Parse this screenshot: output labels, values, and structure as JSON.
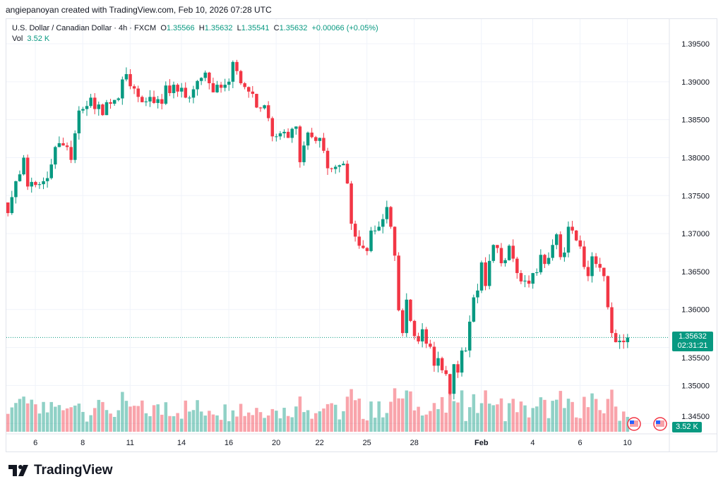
{
  "credit": "angiepanoyan created with TradingView.com, Feb 10, 2026 07:28 UTC",
  "legend": {
    "symbol": "U.S. Dollar / Canadian Dollar · 4h · FXCM",
    "o_label": "O",
    "o": "1.35566",
    "h_label": "H",
    "h": "1.35632",
    "l_label": "L",
    "l": "1.35541",
    "c_label": "C",
    "c": "1.35632",
    "change": "+0.00066 (+0.05%)",
    "vol_label": "Vol",
    "vol": "3.52 K"
  },
  "price_label": {
    "price": "1.35632",
    "countdown": "02:31:21"
  },
  "volume_label": "3.52 K",
  "logo_text": "TradingView",
  "colors": {
    "up": "#089981",
    "down": "#f23645",
    "grid": "#f0f3fa"
  },
  "chart_data": {
    "type": "candlestick",
    "title": "U.S. Dollar / Canadian Dollar · 4h · FXCM",
    "y_ticks": [
      "1.39500",
      "1.39000",
      "1.38500",
      "1.38000",
      "1.37500",
      "1.37000",
      "1.36500",
      "1.36000",
      "1.35500",
      "1.35000",
      "1.34500"
    ],
    "x_ticks": [
      {
        "label": "6",
        "index": 7
      },
      {
        "label": "8",
        "index": 19
      },
      {
        "label": "11",
        "index": 31
      },
      {
        "label": "14",
        "index": 44
      },
      {
        "label": "16",
        "index": 56
      },
      {
        "label": "20",
        "index": 68
      },
      {
        "label": "22",
        "index": 79
      },
      {
        "label": "25",
        "index": 91
      },
      {
        "label": "28",
        "index": 103
      },
      {
        "label": "Feb",
        "index": 120
      },
      {
        "label": "4",
        "index": 133
      },
      {
        "label": "6",
        "index": 145
      },
      {
        "label": "10",
        "index": 157
      }
    ],
    "ylim": [
      1.3435,
      1.3975
    ],
    "first_open": 1.3741,
    "closes": [
      1.3727,
      1.3748,
      1.3769,
      1.3778,
      1.38,
      1.3762,
      1.3768,
      1.3764,
      1.3765,
      1.3769,
      1.3773,
      1.3791,
      1.3814,
      1.3819,
      1.3816,
      1.3814,
      1.3797,
      1.3832,
      1.3862,
      1.3864,
      1.3868,
      1.3879,
      1.3864,
      1.387,
      1.3856,
      1.3873,
      1.3871,
      1.3876,
      1.3878,
      1.3903,
      1.391,
      1.3894,
      1.3891,
      1.388,
      1.3873,
      1.3874,
      1.388,
      1.3872,
      1.3877,
      1.3871,
      1.3895,
      1.3885,
      1.3896,
      1.3887,
      1.3892,
      1.3879,
      1.3879,
      1.389,
      1.3901,
      1.3905,
      1.3912,
      1.3898,
      1.3886,
      1.3896,
      1.3892,
      1.3896,
      1.39,
      1.3926,
      1.3914,
      1.3898,
      1.3893,
      1.3887,
      1.3884,
      1.3866,
      1.3865,
      1.3869,
      1.3852,
      1.3828,
      1.3828,
      1.3832,
      1.3834,
      1.3826,
      1.3838,
      1.3841,
      1.3794,
      1.3816,
      1.3833,
      1.3827,
      1.3822,
      1.3826,
      1.3809,
      1.3786,
      1.3785,
      1.3788,
      1.379,
      1.3792,
      1.3766,
      1.3713,
      1.3696,
      1.3684,
      1.3681,
      1.3677,
      1.3704,
      1.3704,
      1.3709,
      1.3719,
      1.3735,
      1.3709,
      1.3671,
      1.3599,
      1.3569,
      1.3613,
      1.3585,
      1.3565,
      1.3558,
      1.3574,
      1.3555,
      1.3551,
      1.3526,
      1.3536,
      1.352,
      1.3515,
      1.3489,
      1.3528,
      1.3517,
      1.3546,
      1.3546,
      1.3584,
      1.3616,
      1.3625,
      1.3662,
      1.3631,
      1.3664,
      1.3685,
      1.3681,
      1.3661,
      1.3665,
      1.3684,
      1.3667,
      1.3648,
      1.3637,
      1.3638,
      1.3634,
      1.3648,
      1.3649,
      1.3672,
      1.366,
      1.3668,
      1.3685,
      1.3699,
      1.3669,
      1.3675,
      1.3709,
      1.3704,
      1.3691,
      1.3683,
      1.3656,
      1.3644,
      1.367,
      1.366,
      1.3655,
      1.3644,
      1.3603,
      1.3569,
      1.3557,
      1.3559,
      1.3557,
      1.35632
    ],
    "current_price": 1.35632
  }
}
